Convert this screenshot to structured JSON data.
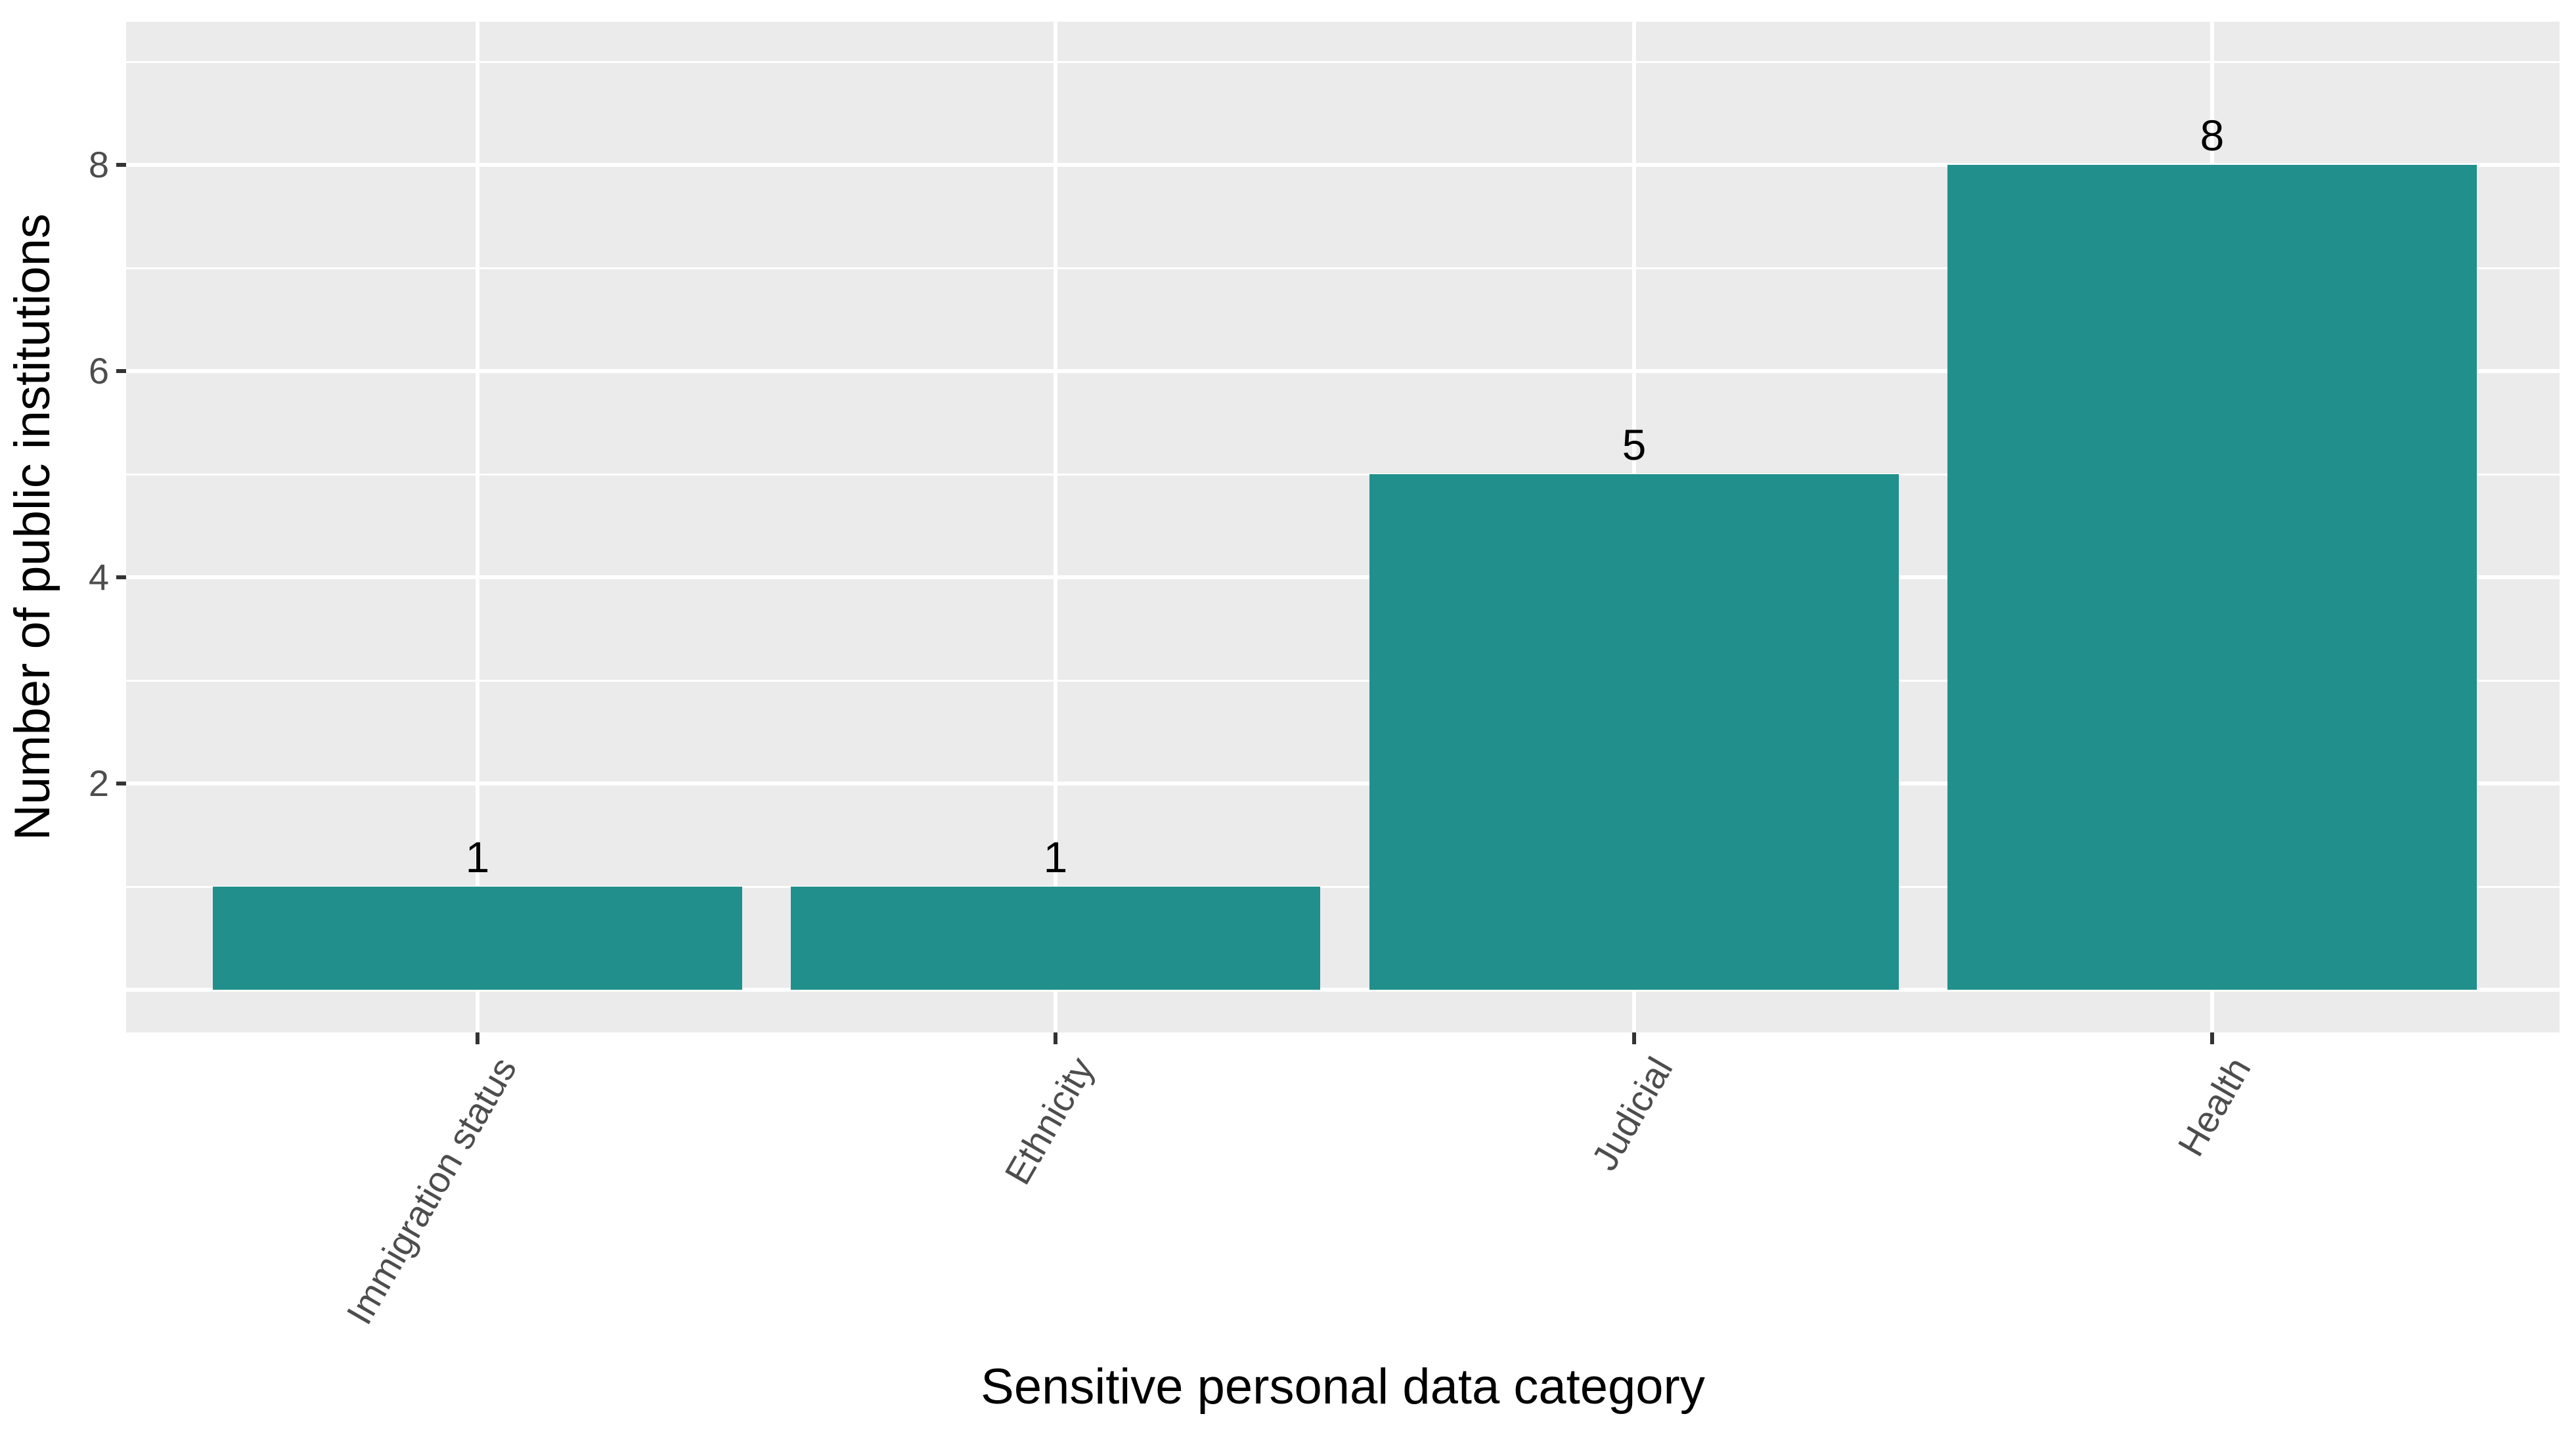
{
  "chart_data": {
    "type": "bar",
    "title": "",
    "xlabel": "Sensitive personal data category",
    "ylabel": "Number of public institutions",
    "categories": [
      "Immigration status",
      "Ethnicity",
      "Judicial",
      "Health"
    ],
    "values": [
      1,
      1,
      5,
      8
    ],
    "bar_labels": [
      "1",
      "1",
      "5",
      "8"
    ],
    "yticks": [
      2,
      4,
      6,
      8
    ],
    "ylim": [
      -0.4,
      9.4
    ],
    "grid": {
      "major_y": [
        0,
        2,
        4,
        6,
        8
      ],
      "minor_y": [
        1,
        3,
        5,
        7,
        9
      ],
      "vertical_major_at_each_category": true
    },
    "legend_position": "none",
    "style": {
      "bar_color": "#21908C",
      "panel_bg": "#EBEBEB",
      "grid_color": "#FFFFFF",
      "axis_text_color": "#4D4D4D",
      "tick_mark_color": "#333333",
      "title_color": "#000000"
    }
  }
}
